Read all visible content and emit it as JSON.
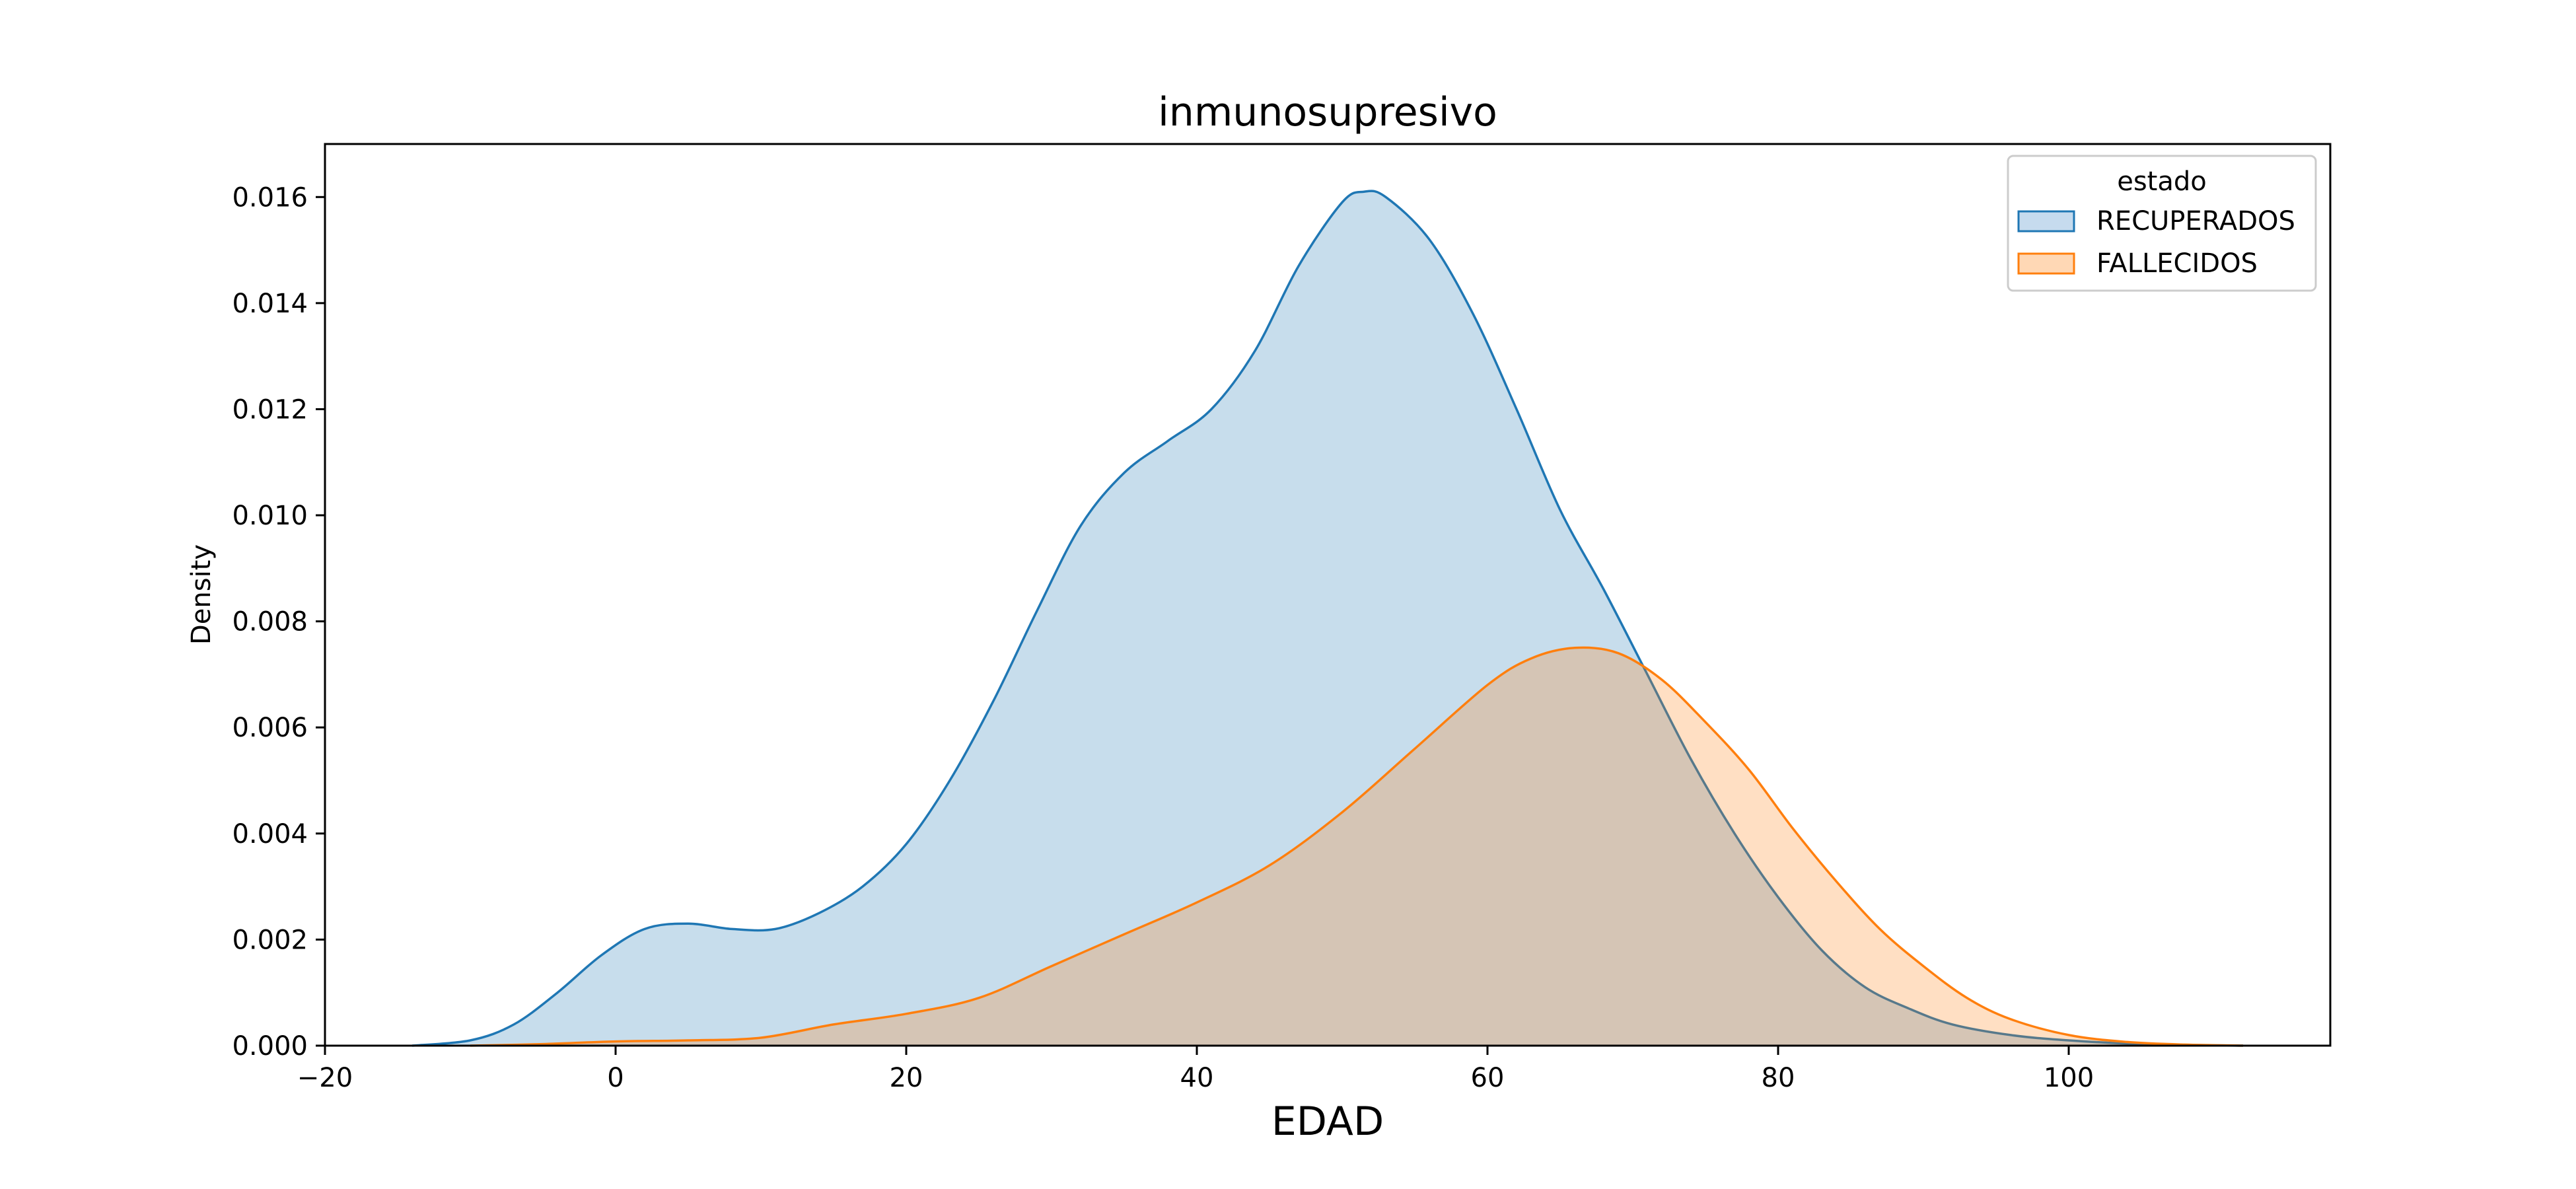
{
  "chart_data": {
    "type": "area",
    "title": "inmunosupresivo",
    "xlabel": "EDAD",
    "ylabel": "Density",
    "xlim": [
      -20,
      118
    ],
    "ylim": [
      0,
      0.017
    ],
    "xticks": [
      -20,
      0,
      20,
      40,
      60,
      80,
      100
    ],
    "xtick_labels": [
      "−20",
      "0",
      "20",
      "40",
      "60",
      "80",
      "100"
    ],
    "yticks": [
      0,
      0.002,
      0.004,
      0.006,
      0.008,
      0.01,
      0.012,
      0.014,
      0.016
    ],
    "ytick_labels": [
      "0.000",
      "0.002",
      "0.004",
      "0.006",
      "0.008",
      "0.010",
      "0.012",
      "0.014",
      "0.016"
    ],
    "grid": false,
    "legend": {
      "title": "estado",
      "placement": "top-right"
    },
    "series": [
      {
        "name": "RECUPERADOS",
        "color": "#1f77b4",
        "fill": "#c6dbee",
        "x": [
          -14,
          -10,
          -7,
          -4,
          -1,
          2,
          5,
          8,
          11,
          14,
          17,
          20,
          23,
          26,
          29,
          32,
          35,
          38,
          41,
          44,
          47,
          50,
          51.5,
          53,
          56,
          59,
          62,
          65,
          68,
          71,
          74,
          77,
          80,
          83,
          86,
          89,
          92,
          96,
          100,
          105,
          112
        ],
        "y": [
          0.0,
          0.0001,
          0.0004,
          0.001,
          0.0017,
          0.0022,
          0.0023,
          0.0022,
          0.0022,
          0.0025,
          0.003,
          0.0038,
          0.005,
          0.0065,
          0.0082,
          0.0098,
          0.0108,
          0.0114,
          0.012,
          0.0131,
          0.0147,
          0.0159,
          0.0161,
          0.016,
          0.0152,
          0.0138,
          0.012,
          0.0101,
          0.0086,
          0.007,
          0.0054,
          0.004,
          0.0028,
          0.0018,
          0.0011,
          0.0007,
          0.0004,
          0.0002,
          0.0001,
          3e-05,
          0.0
        ]
      },
      {
        "name": "FALLECIDOS",
        "color": "#ff7f0e",
        "fill": "#ffd8b5",
        "x": [
          -10,
          -5,
          0,
          5,
          10,
          15,
          20,
          25,
          30,
          35,
          40,
          45,
          50,
          55,
          60,
          63,
          66,
          69,
          72,
          75,
          78,
          81,
          84,
          87,
          90,
          93,
          96,
          100,
          104,
          108,
          112
        ],
        "y": [
          0.0,
          3e-05,
          8e-05,
          0.0001,
          0.00015,
          0.0004,
          0.0006,
          0.0009,
          0.0015,
          0.0021,
          0.0027,
          0.0034,
          0.0044,
          0.0056,
          0.0068,
          0.0073,
          0.0075,
          0.0074,
          0.0069,
          0.0061,
          0.0052,
          0.0041,
          0.0031,
          0.0022,
          0.0015,
          0.0009,
          0.0005,
          0.0002,
          7e-05,
          2e-05,
          0.0
        ]
      }
    ]
  }
}
